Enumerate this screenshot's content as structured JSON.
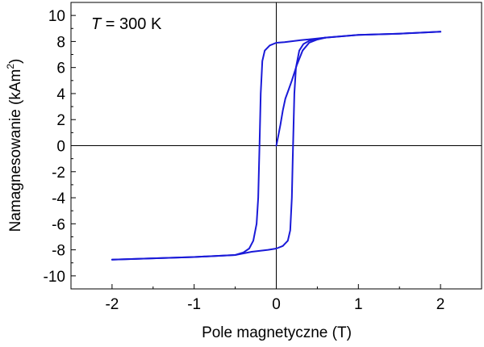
{
  "chart_data": {
    "type": "line",
    "annotation": {
      "italic": "T",
      "rest": " = 300 K"
    },
    "xlabel": "Pole magnetyczne (T)",
    "ylabel": {
      "base": "Namagnesowanie (kAm",
      "sup": "2",
      "close": ")"
    },
    "xlim": [
      -2.5,
      2.5
    ],
    "ylim": [
      -11,
      11
    ],
    "x_ticks": [
      {
        "value": -2,
        "label": "-2"
      },
      {
        "value": -1,
        "label": "-1"
      },
      {
        "value": 0,
        "label": "0"
      },
      {
        "value": 1,
        "label": "1"
      },
      {
        "value": 2,
        "label": "2"
      }
    ],
    "y_ticks": [
      {
        "value": -10,
        "label": "-10"
      },
      {
        "value": -8,
        "label": "-8"
      },
      {
        "value": -6,
        "label": "-6"
      },
      {
        "value": -4,
        "label": "-4"
      },
      {
        "value": -2,
        "label": "-2"
      },
      {
        "value": 0,
        "label": "0"
      },
      {
        "value": 2,
        "label": "2"
      },
      {
        "value": 4,
        "label": "4"
      },
      {
        "value": 6,
        "label": "6"
      },
      {
        "value": 8,
        "label": "8"
      },
      {
        "value": 10,
        "label": "10"
      }
    ],
    "grid": false,
    "zero_lines": true,
    "series": [
      {
        "color": "#1a1ad8",
        "segments": [
          {
            "part": "initial-magnetization",
            "x": [
              0,
              0.02,
              0.05,
              0.08,
              0.11,
              0.15,
              0.19,
              0.25,
              0.32,
              0.4,
              0.5,
              0.6
            ],
            "y": [
              0,
              0.6,
              1.6,
              2.7,
              3.6,
              4.3,
              5.0,
              6.2,
              7.3,
              7.9,
              8.15,
              8.3
            ]
          },
          {
            "part": "saturation-positive",
            "x": [
              0.6,
              1.0,
              1.5,
              2.0
            ],
            "y": [
              8.3,
              8.5,
              8.6,
              8.75
            ]
          },
          {
            "part": "descending-branch",
            "x": [
              2.0,
              1.5,
              1.0,
              0.6,
              0.3,
              0.1,
              0.0,
              -0.08,
              -0.14,
              -0.17,
              -0.19,
              -0.2,
              -0.21,
              -0.22,
              -0.24,
              -0.28,
              -0.33,
              -0.4,
              -0.5,
              -1.0,
              -1.5,
              -2.0
            ],
            "y": [
              8.75,
              8.6,
              8.5,
              8.3,
              8.1,
              7.95,
              7.9,
              7.7,
              7.3,
              6.5,
              4.0,
              1.0,
              -1.5,
              -4.0,
              -6.0,
              -7.3,
              -7.9,
              -8.2,
              -8.4,
              -8.55,
              -8.65,
              -8.75
            ]
          },
          {
            "part": "ascending-branch",
            "x": [
              -2.0,
              -1.5,
              -1.0,
              -0.5,
              -0.3,
              -0.1,
              0.0,
              0.08,
              0.14,
              0.17,
              0.19,
              0.2,
              0.21,
              0.22,
              0.24,
              0.28,
              0.33,
              0.4,
              0.5,
              0.6
            ],
            "y": [
              -8.75,
              -8.65,
              -8.55,
              -8.4,
              -8.15,
              -8.0,
              -7.9,
              -7.7,
              -7.3,
              -6.5,
              -4.0,
              -1.0,
              1.5,
              4.0,
              6.0,
              7.3,
              7.8,
              8.05,
              8.2,
              8.3
            ]
          }
        ]
      }
    ]
  }
}
